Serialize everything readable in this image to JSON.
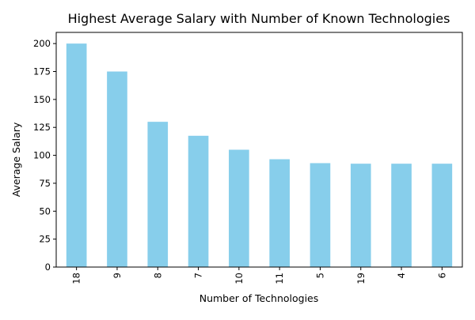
{
  "chart_data": {
    "type": "bar",
    "title": "Highest Average Salary with Number of Known Technologies",
    "xlabel": "Number of Technologies",
    "ylabel": "Average Salary",
    "categories": [
      "18",
      "9",
      "8",
      "7",
      "10",
      "11",
      "5",
      "19",
      "4",
      "6"
    ],
    "values": [
      200,
      175,
      130,
      117.5,
      105,
      96.5,
      93,
      92.5,
      92.5,
      92.5
    ],
    "ylim": [
      0,
      210
    ],
    "yticks": [
      0,
      25,
      50,
      75,
      100,
      125,
      150,
      175,
      200
    ],
    "x_tick_rotation": "vertical",
    "grid": false,
    "legend": "none",
    "colors": {
      "bar": "#87CEEB",
      "axis": "#000000"
    }
  }
}
